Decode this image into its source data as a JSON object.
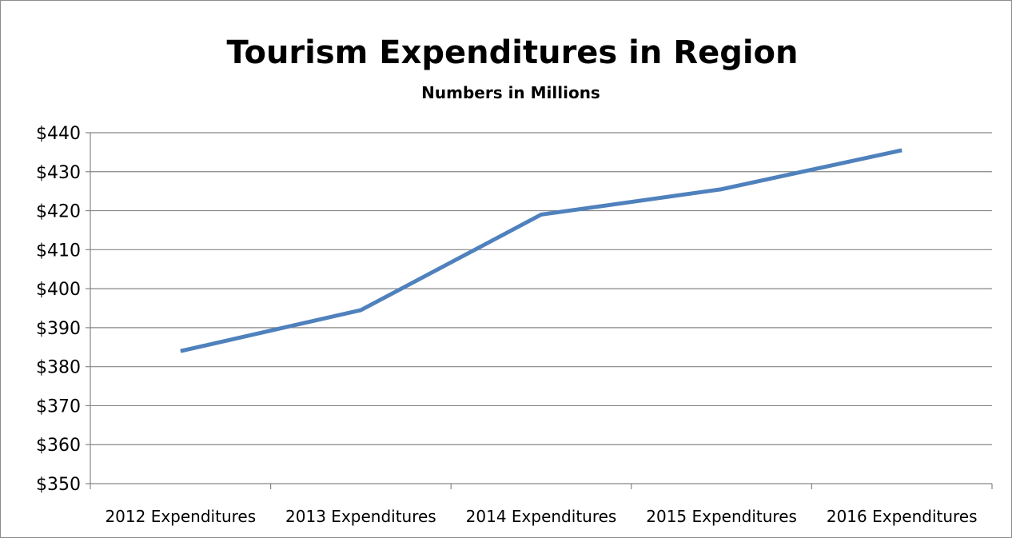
{
  "chart_data": {
    "type": "line",
    "title": "Tourism Expenditures in Region",
    "subtitle": "Numbers in Millions",
    "categories": [
      "2012 Expenditures",
      "2013 Expenditures",
      "2014 Expenditures",
      "2015 Expenditures",
      "2016 Expenditures"
    ],
    "series": [
      {
        "values": [
          384,
          394.5,
          419,
          425.5,
          435.5
        ]
      }
    ],
    "ylim": [
      350,
      440
    ],
    "yticks": [
      {
        "value": 350,
        "label": "$350"
      },
      {
        "value": 360,
        "label": "$360"
      },
      {
        "value": 370,
        "label": "$370"
      },
      {
        "value": 380,
        "label": "$380"
      },
      {
        "value": 390,
        "label": "$390"
      },
      {
        "value": 400,
        "label": "$400"
      },
      {
        "value": 410,
        "label": "$410"
      },
      {
        "value": 420,
        "label": "$420"
      },
      {
        "value": 430,
        "label": "$430"
      },
      {
        "value": 440,
        "label": "$440"
      }
    ],
    "grid": true,
    "legend": "none",
    "colors": {
      "line": "#4f81bd",
      "grid": "#868686",
      "axis": "#868686",
      "text": "#000000"
    }
  }
}
